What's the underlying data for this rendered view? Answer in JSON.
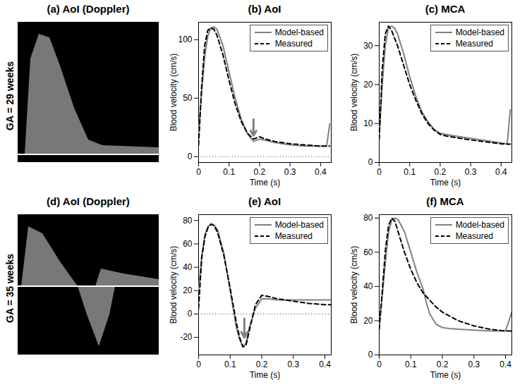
{
  "images": [
    {
      "title": "(a) AoI (Doppler)",
      "row_label": "GA = 29 weeks"
    },
    {
      "title": "(d) AoI (Doppler)",
      "row_label": "GA = 35 weeks"
    }
  ],
  "chart_data": [
    {
      "type": "line",
      "title": "(b) AoI",
      "x_label": "Time (s)",
      "y_label": "Blood velocity (cm/s)",
      "x": [
        0,
        0.01,
        0.02,
        0.03,
        0.04,
        0.05,
        0.06,
        0.08,
        0.1,
        0.12,
        0.14,
        0.16,
        0.18,
        0.2,
        0.22,
        0.25,
        0.3,
        0.35,
        0.4,
        0.42,
        0.43
      ],
      "series": [
        {
          "name": "Model-based",
          "color": "#808080",
          "line_style": "solid",
          "values": [
            20,
            55,
            85,
            103,
            110,
            111,
            109,
            95,
            72,
            50,
            32,
            20,
            13,
            15,
            14,
            12,
            10,
            9,
            9,
            9,
            28
          ]
        },
        {
          "name": "Measured",
          "color": "#000000",
          "line_style": "dashed",
          "values": [
            10,
            60,
            95,
            108,
            110,
            109,
            104,
            87,
            65,
            45,
            30,
            20,
            15,
            17,
            15,
            13,
            11,
            10,
            9,
            9,
            9
          ]
        }
      ],
      "arrow": {
        "x": 0.18,
        "y_from": 32,
        "y_to": 18
      },
      "xlim": [
        0,
        0.435
      ],
      "xticks": [
        0,
        0.1,
        0.2,
        0.3,
        0.4
      ],
      "ylim": [
        -5,
        115
      ],
      "yticks": [
        0,
        50,
        100
      ],
      "legend": "upper right"
    },
    {
      "type": "line",
      "title": "(c) MCA",
      "x_label": "Time (s)",
      "y_label": "Blood velocity (cm/s)",
      "x": [
        0,
        0.01,
        0.02,
        0.03,
        0.04,
        0.05,
        0.06,
        0.08,
        0.1,
        0.12,
        0.14,
        0.16,
        0.18,
        0.2,
        0.22,
        0.25,
        0.3,
        0.35,
        0.4,
        0.42,
        0.43
      ],
      "series": [
        {
          "name": "Model-based",
          "color": "#808080",
          "line_style": "solid",
          "values": [
            7,
            20,
            30,
            34.5,
            35,
            34.5,
            33,
            28,
            22,
            17,
            13,
            10.5,
            8.5,
            7.5,
            7.2,
            6.8,
            6.2,
            5.6,
            5,
            4.8,
            13.5
          ]
        },
        {
          "name": "Measured",
          "color": "#000000",
          "line_style": "dashed",
          "values": [
            6,
            24,
            33,
            35,
            34,
            32,
            30,
            25,
            20,
            16,
            12.5,
            10,
            8.3,
            7.2,
            6.8,
            6.4,
            5.8,
            5.3,
            4.8,
            4.7,
            4.7
          ]
        }
      ],
      "xlim": [
        0,
        0.435
      ],
      "xticks": [
        0,
        0.1,
        0.2,
        0.3,
        0.4
      ],
      "ylim": [
        0,
        36
      ],
      "yticks": [
        0,
        10,
        20,
        30
      ],
      "legend": "upper right"
    },
    {
      "type": "line",
      "title": "(e) AoI",
      "x_label": "Time (s)",
      "y_label": "Blood velocity (cm/s)",
      "x": [
        0,
        0.01,
        0.02,
        0.03,
        0.04,
        0.05,
        0.06,
        0.08,
        0.1,
        0.12,
        0.13,
        0.14,
        0.15,
        0.16,
        0.18,
        0.2,
        0.22,
        0.25,
        0.3,
        0.35,
        0.4,
        0.42
      ],
      "series": [
        {
          "name": "Model-based",
          "color": "#808080",
          "line_style": "solid",
          "values": [
            20,
            50,
            68,
            75,
            77,
            76,
            72,
            52,
            20,
            -12,
            -22,
            -28,
            -25,
            -12,
            5,
            13,
            13,
            12,
            12,
            12,
            12,
            12
          ]
        },
        {
          "name": "Measured",
          "color": "#000000",
          "line_style": "dashed",
          "values": [
            5,
            48,
            66,
            74,
            77,
            75,
            70,
            50,
            22,
            -8,
            -20,
            -28,
            -27,
            -15,
            8,
            16,
            15,
            13,
            11,
            9,
            8,
            8
          ]
        }
      ],
      "arrow": {
        "x": 0.145,
        "y_from": -4,
        "y_to": -20
      },
      "xlim": [
        0,
        0.42
      ],
      "xticks": [
        0,
        0.1,
        0.2,
        0.3,
        0.4
      ],
      "ylim": [
        -35,
        85
      ],
      "yticks": [
        -20,
        0,
        20,
        40,
        60,
        80
      ],
      "legend": "upper right"
    },
    {
      "type": "line",
      "title": "(f) MCA",
      "x_label": "Time (s)",
      "y_label": "Blood velocity (cm/s)",
      "x": [
        0,
        0.01,
        0.02,
        0.03,
        0.04,
        0.05,
        0.06,
        0.08,
        0.1,
        0.12,
        0.13,
        0.14,
        0.15,
        0.16,
        0.18,
        0.2,
        0.22,
        0.25,
        0.3,
        0.35,
        0.4,
        0.42
      ],
      "series": [
        {
          "name": "Model-based",
          "color": "#808080",
          "line_style": "solid",
          "values": [
            17,
            35,
            55,
            72,
            79,
            80,
            79,
            72,
            60,
            48,
            43,
            38,
            30,
            24,
            18,
            16,
            15.5,
            15,
            14.5,
            14,
            14,
            25
          ]
        },
        {
          "name": "Measured",
          "color": "#000000",
          "line_style": "dashed",
          "values": [
            15,
            38,
            62,
            76,
            80,
            78,
            72,
            60,
            50,
            42,
            39,
            36,
            34,
            32,
            28,
            25,
            23,
            20,
            17,
            15,
            14,
            14
          ]
        }
      ],
      "xlim": [
        0,
        0.42
      ],
      "xticks": [
        0,
        0.1,
        0.2,
        0.3,
        0.4
      ],
      "ylim": [
        0,
        82
      ],
      "yticks": [
        0,
        20,
        40,
        60,
        80
      ],
      "legend": "upper right"
    }
  ]
}
